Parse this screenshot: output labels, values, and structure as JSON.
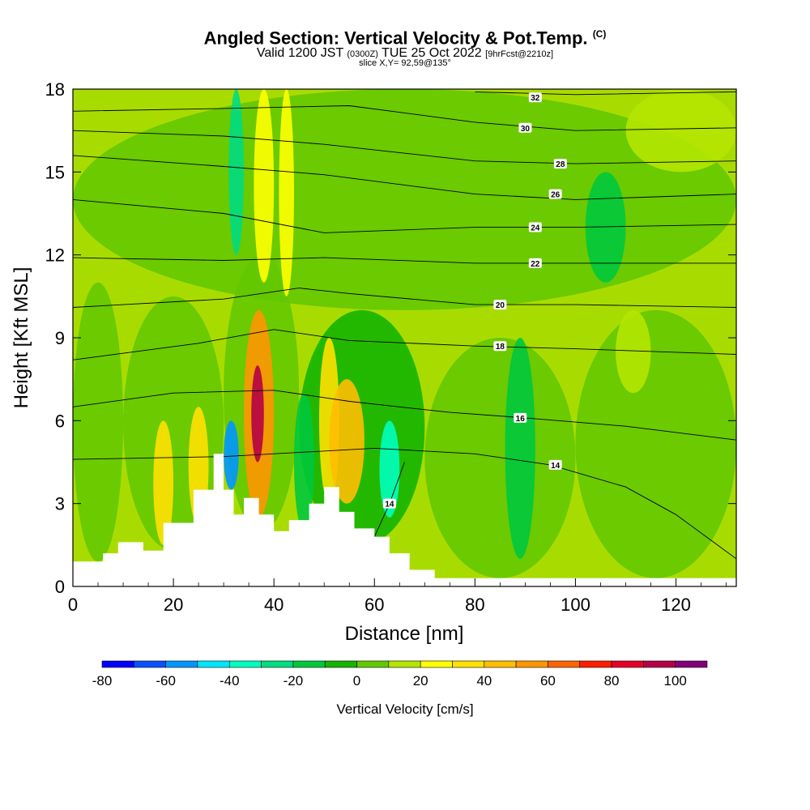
{
  "header": {
    "title": "Angled Section: Vertical Velocity & Pot.Temp.",
    "title_units": "(C)",
    "subtitle_main": "Valid 1200 JST",
    "subtitle_zulu": "(0300Z)",
    "subtitle_date": "TUE 25 Oct 2022",
    "subtitle_fcst": "[9hrFcst@2210z]",
    "slice": "slice X,Y= 92,59@135°"
  },
  "colors": {
    "background_field": "#a8dc00",
    "terrain": "#ffffff",
    "contour": "#000000"
  },
  "chart_data": {
    "type": "heatmap",
    "title": "Angled Section: Vertical Velocity & Pot.Temp.",
    "xlabel": "Distance [nm]",
    "ylabel": "Height [Kft MSL]",
    "xlim": [
      0,
      132
    ],
    "ylim": [
      0,
      18
    ],
    "x_ticks": [
      0,
      20,
      40,
      60,
      80,
      100,
      120
    ],
    "y_ticks": [
      0,
      3,
      6,
      9,
      12,
      15,
      18
    ],
    "grid": false,
    "colorbar": {
      "title": "Vertical Velocity [cm/s]",
      "tick_labels": [
        "-80",
        "-60",
        "-40",
        "-20",
        "0",
        "20",
        "40",
        "60",
        "80",
        "100"
      ],
      "tick_values": [
        -80,
        -60,
        -40,
        -20,
        0,
        20,
        40,
        60,
        80,
        100
      ],
      "levels": [
        -80,
        -70,
        -60,
        -50,
        -40,
        -30,
        -20,
        -10,
        0,
        10,
        20,
        30,
        40,
        50,
        60,
        70,
        80,
        90,
        100,
        110
      ],
      "colors": [
        "#0000ff",
        "#0a50ff",
        "#0096ff",
        "#00e6ff",
        "#00ffbe",
        "#00dc82",
        "#00c83c",
        "#14b400",
        "#64c800",
        "#b4e600",
        "#ffff00",
        "#ffe100",
        "#ffbe00",
        "#ff9600",
        "#ff6400",
        "#ff1e00",
        "#e60028",
        "#b40046",
        "#820078"
      ]
    },
    "cells": [
      {
        "x": [
          0,
          10
        ],
        "y": [
          0.9,
          11
        ],
        "value": 5
      },
      {
        "x": [
          10,
          30
        ],
        "y": [
          1.3,
          10.5
        ],
        "value": 0
      },
      {
        "x": [
          30,
          45
        ],
        "y": [
          2,
          12
        ],
        "value": 3
      },
      {
        "x": [
          45,
          70
        ],
        "y": [
          1.5,
          10
        ],
        "value": -5
      },
      {
        "x": [
          70,
          100
        ],
        "y": [
          0.3,
          9
        ],
        "value": 5
      },
      {
        "x": [
          100,
          132
        ],
        "y": [
          0.3,
          10
        ],
        "value": 2
      },
      {
        "x": [
          0,
          132
        ],
        "y": [
          10,
          18
        ],
        "value": 3
      },
      {
        "x": [
          16,
          20
        ],
        "y": [
          1.5,
          6
        ],
        "value": 30
      },
      {
        "x": [
          23,
          27
        ],
        "y": [
          2.2,
          6.5
        ],
        "value": 35
      },
      {
        "x": [
          30,
          33
        ],
        "y": [
          3.5,
          6
        ],
        "value": -55
      },
      {
        "x": [
          34,
          40
        ],
        "y": [
          2.5,
          10
        ],
        "value": 55
      },
      {
        "x": [
          35.5,
          38
        ],
        "y": [
          4.5,
          8
        ],
        "value": 95
      },
      {
        "x": [
          44,
          48
        ],
        "y": [
          2,
          7
        ],
        "value": -20
      },
      {
        "x": [
          49,
          53
        ],
        "y": [
          3,
          9
        ],
        "value": 35
      },
      {
        "x": [
          51,
          58
        ],
        "y": [
          3,
          7.5
        ],
        "value": 45
      },
      {
        "x": [
          61,
          65
        ],
        "y": [
          2.5,
          6
        ],
        "value": -40
      },
      {
        "x": [
          36,
          40
        ],
        "y": [
          11,
          18
        ],
        "value": 20
      },
      {
        "x": [
          41,
          44
        ],
        "y": [
          10.5,
          18
        ],
        "value": 20
      },
      {
        "x": [
          31,
          34
        ],
        "y": [
          12,
          18
        ],
        "value": -30
      },
      {
        "x": [
          86,
          92
        ],
        "y": [
          1,
          9
        ],
        "value": -15
      },
      {
        "x": [
          102,
          110
        ],
        "y": [
          11,
          15
        ],
        "value": -15
      },
      {
        "x": [
          108,
          115
        ],
        "y": [
          7,
          10
        ],
        "value": 15
      },
      {
        "x": [
          110,
          132
        ],
        "y": [
          15,
          18
        ],
        "value": 15
      }
    ],
    "terrain_profile": {
      "x": [
        0,
        6,
        6,
        9,
        9,
        14,
        14,
        18,
        18,
        24,
        24,
        28,
        28,
        30,
        30,
        32,
        32,
        34,
        34,
        37,
        37,
        40,
        40,
        43,
        43,
        47,
        47,
        50,
        50,
        53,
        53,
        56,
        56,
        60,
        60,
        63,
        63,
        67,
        67,
        72,
        72,
        132
      ],
      "height": [
        0.9,
        0.9,
        1.2,
        1.2,
        1.6,
        1.6,
        1.3,
        1.3,
        2.3,
        2.3,
        3.5,
        3.5,
        4.8,
        4.8,
        3.5,
        3.5,
        2.6,
        2.6,
        3.2,
        3.2,
        2.6,
        2.6,
        2.0,
        2.0,
        2.4,
        2.4,
        3.0,
        3.0,
        3.6,
        3.6,
        2.7,
        2.7,
        2.1,
        2.1,
        1.8,
        1.8,
        1.2,
        1.2,
        0.6,
        0.6,
        0.3,
        0.3
      ]
    },
    "contours": [
      {
        "label": "14",
        "x": [
          0,
          30,
          60,
          80,
          95,
          110,
          120,
          132
        ],
        "y": [
          4.6,
          4.7,
          5.0,
          4.8,
          4.4,
          3.6,
          2.6,
          1.0
        ],
        "label_x": 96,
        "label_y": 4.4
      },
      {
        "label": "14",
        "x": [
          60,
          63,
          66
        ],
        "y": [
          1.8,
          3.0,
          4.5
        ],
        "label_x": 63,
        "label_y": 3.0
      },
      {
        "label": "16",
        "x": [
          0,
          20,
          40,
          55,
          75,
          90,
          110,
          132
        ],
        "y": [
          6.5,
          7.0,
          7.1,
          6.7,
          6.3,
          6.1,
          5.8,
          5.3
        ],
        "label_x": 89,
        "label_y": 6.1
      },
      {
        "label": "18",
        "x": [
          0,
          25,
          40,
          55,
          80,
          100,
          132
        ],
        "y": [
          8.2,
          8.8,
          9.3,
          8.9,
          8.7,
          8.6,
          8.4
        ],
        "label_x": 85,
        "label_y": 8.7
      },
      {
        "label": "20",
        "x": [
          0,
          30,
          45,
          55,
          80,
          100,
          132
        ],
        "y": [
          10.1,
          10.4,
          10.8,
          10.6,
          10.2,
          10.2,
          10.1
        ],
        "label_x": 85,
        "label_y": 10.2
      },
      {
        "label": "22",
        "x": [
          0,
          30,
          50,
          80,
          100,
          132
        ],
        "y": [
          11.9,
          11.8,
          11.9,
          11.7,
          11.7,
          11.7
        ],
        "label_x": 92,
        "label_y": 11.7
      },
      {
        "label": "24",
        "x": [
          0,
          30,
          50,
          80,
          100,
          132
        ],
        "y": [
          14.0,
          13.5,
          12.8,
          13.0,
          13.0,
          13.1
        ],
        "label_x": 92,
        "label_y": 13.0
      },
      {
        "label": "26",
        "x": [
          0,
          30,
          50,
          80,
          100,
          132
        ],
        "y": [
          15.6,
          15.2,
          14.9,
          14.2,
          14.0,
          14.2
        ],
        "label_x": 96,
        "label_y": 14.2
      },
      {
        "label": "28",
        "x": [
          0,
          30,
          50,
          80,
          100,
          132
        ],
        "y": [
          16.5,
          16.3,
          16.0,
          15.4,
          15.3,
          15.4
        ],
        "label_x": 97,
        "label_y": 15.3
      },
      {
        "label": "30",
        "x": [
          0,
          30,
          55,
          80,
          100,
          132
        ],
        "y": [
          17.2,
          17.3,
          17.4,
          16.8,
          16.5,
          16.6
        ],
        "label_x": 90,
        "label_y": 16.6
      },
      {
        "label": "32",
        "x": [
          80,
          100,
          132
        ],
        "y": [
          17.9,
          17.8,
          17.9
        ],
        "label_x": 92,
        "label_y": 17.7
      }
    ]
  }
}
